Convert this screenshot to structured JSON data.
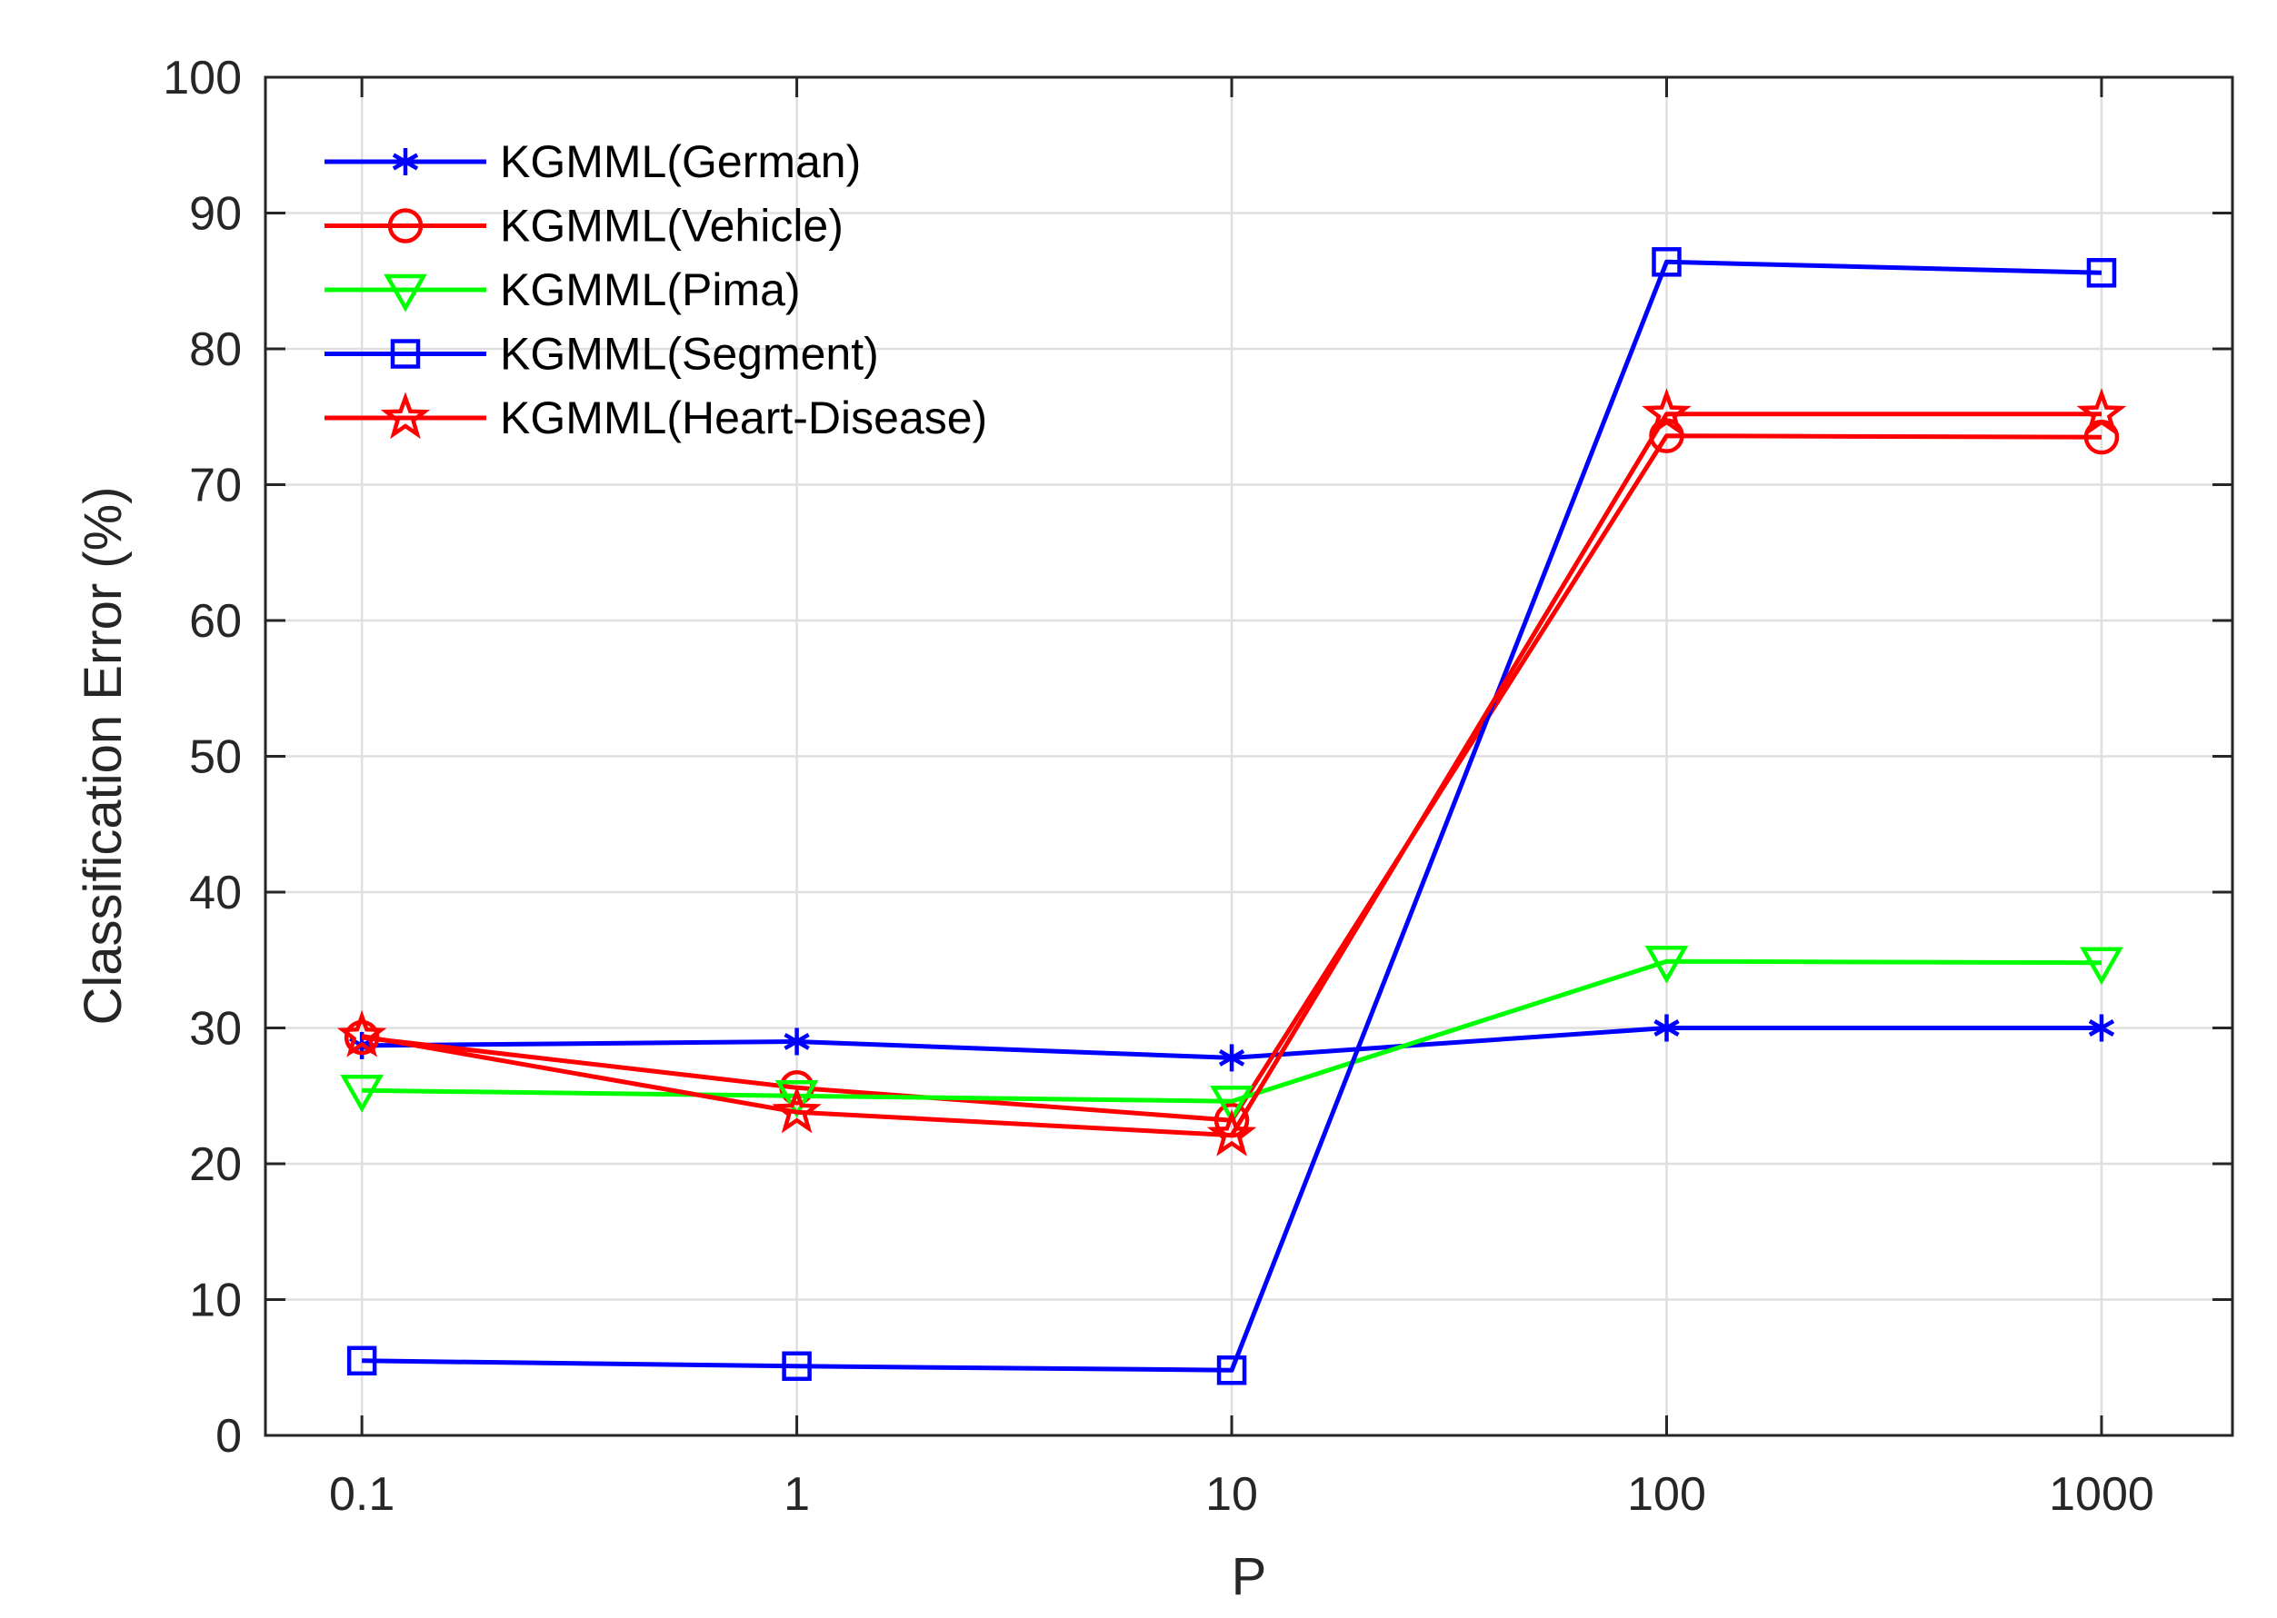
{
  "chart_data": {
    "type": "line",
    "title": "",
    "xlabel": "P",
    "ylabel": "Classification Error (%)",
    "x_scale": "log",
    "categories": [
      "0.1",
      "1",
      "10",
      "100",
      "1000"
    ],
    "xlim": [
      0.06,
      2000
    ],
    "ylim": [
      0,
      100
    ],
    "yticks": [
      "0",
      "10",
      "20",
      "30",
      "40",
      "50",
      "60",
      "70",
      "80",
      "90",
      "100"
    ],
    "grid": true,
    "legend_position": "top-left",
    "series": [
      {
        "name": "KGMML(German)",
        "color": "#0000ff",
        "marker": "asterisk",
        "values": [
          28.7,
          29.0,
          27.8,
          30.0,
          30.0
        ]
      },
      {
        "name": "KGMML(Vehicle)",
        "color": "#ff0000",
        "marker": "circle",
        "values": [
          29.3,
          25.6,
          23.2,
          73.6,
          73.5
        ]
      },
      {
        "name": "KGMML(Pima)",
        "color": "#00ff00",
        "marker": "triangle-down",
        "values": [
          25.4,
          25.0,
          24.6,
          34.9,
          34.8
        ]
      },
      {
        "name": "KGMML(Segment)",
        "color": "#0000ff",
        "marker": "square",
        "values": [
          5.5,
          5.1,
          4.8,
          86.4,
          85.6
        ]
      },
      {
        "name": "KGMML(Heart-Disease)",
        "color": "#ff0000",
        "marker": "pentagram",
        "values": [
          29.4,
          23.8,
          22.1,
          75.2,
          75.2
        ]
      }
    ]
  }
}
